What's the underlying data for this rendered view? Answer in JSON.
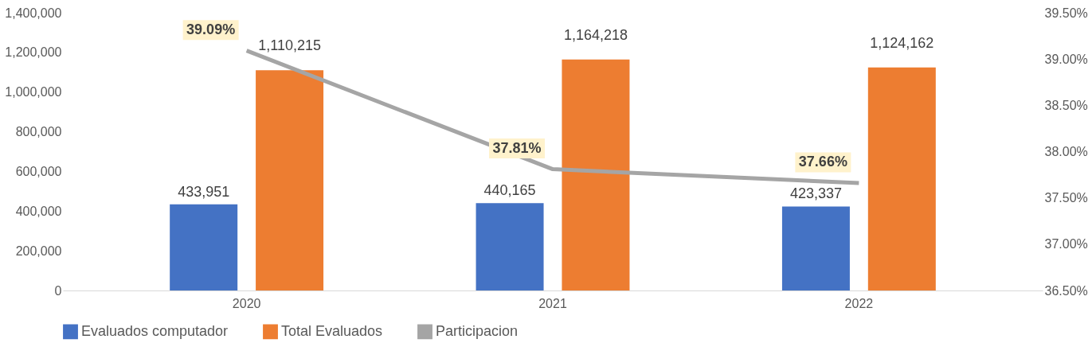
{
  "chart_data": {
    "type": "bar",
    "categories": [
      "2020",
      "2021",
      "2022"
    ],
    "series": [
      {
        "name": "Evaluados computador",
        "color": "#4472c4",
        "values": [
          433951,
          440165,
          423337
        ],
        "value_labels": [
          "433,951",
          "440,165",
          "423,337"
        ]
      },
      {
        "name": "Total Evaluados",
        "color": "#ed7d31",
        "values": [
          1110215,
          1164218,
          1124162
        ],
        "value_labels": [
          "1,110,215",
          "1,164,218",
          "1,124,162"
        ]
      },
      {
        "name": "Participacion",
        "type": "line",
        "axis": "y2",
        "color": "#a5a5a5",
        "values": [
          39.09,
          37.81,
          37.66
        ],
        "value_labels": [
          "39.09%",
          "37.81%",
          "37.66%"
        ]
      }
    ],
    "ylim": [
      0,
      1400000
    ],
    "yticks": [
      0,
      {
        "value": 200000,
        "label": "200,000"
      },
      {
        "value": 400000,
        "label": "400,000"
      },
      {
        "value": 600000,
        "label": "600,000"
      },
      {
        "value": 800000,
        "label": "800,000"
      },
      {
        "value": 1000000,
        "label": "1,000,000"
      },
      {
        "value": 1200000,
        "label": "1,200,000"
      },
      {
        "value": 1400000,
        "label": "1,400,000"
      }
    ],
    "y2lim": [
      36.5,
      39.5
    ],
    "y2ticks": [
      {
        "value": 36.5,
        "label": "36.50%"
      },
      {
        "value": 37.0,
        "label": "37.00%"
      },
      {
        "value": 37.5,
        "label": "37.50%"
      },
      {
        "value": 38.0,
        "label": "38.00%"
      },
      {
        "value": 38.5,
        "label": "38.50%"
      },
      {
        "value": 39.0,
        "label": "39.00%"
      },
      {
        "value": 39.5,
        "label": "39.50%"
      }
    ],
    "grid": false,
    "legend": "bottom"
  }
}
